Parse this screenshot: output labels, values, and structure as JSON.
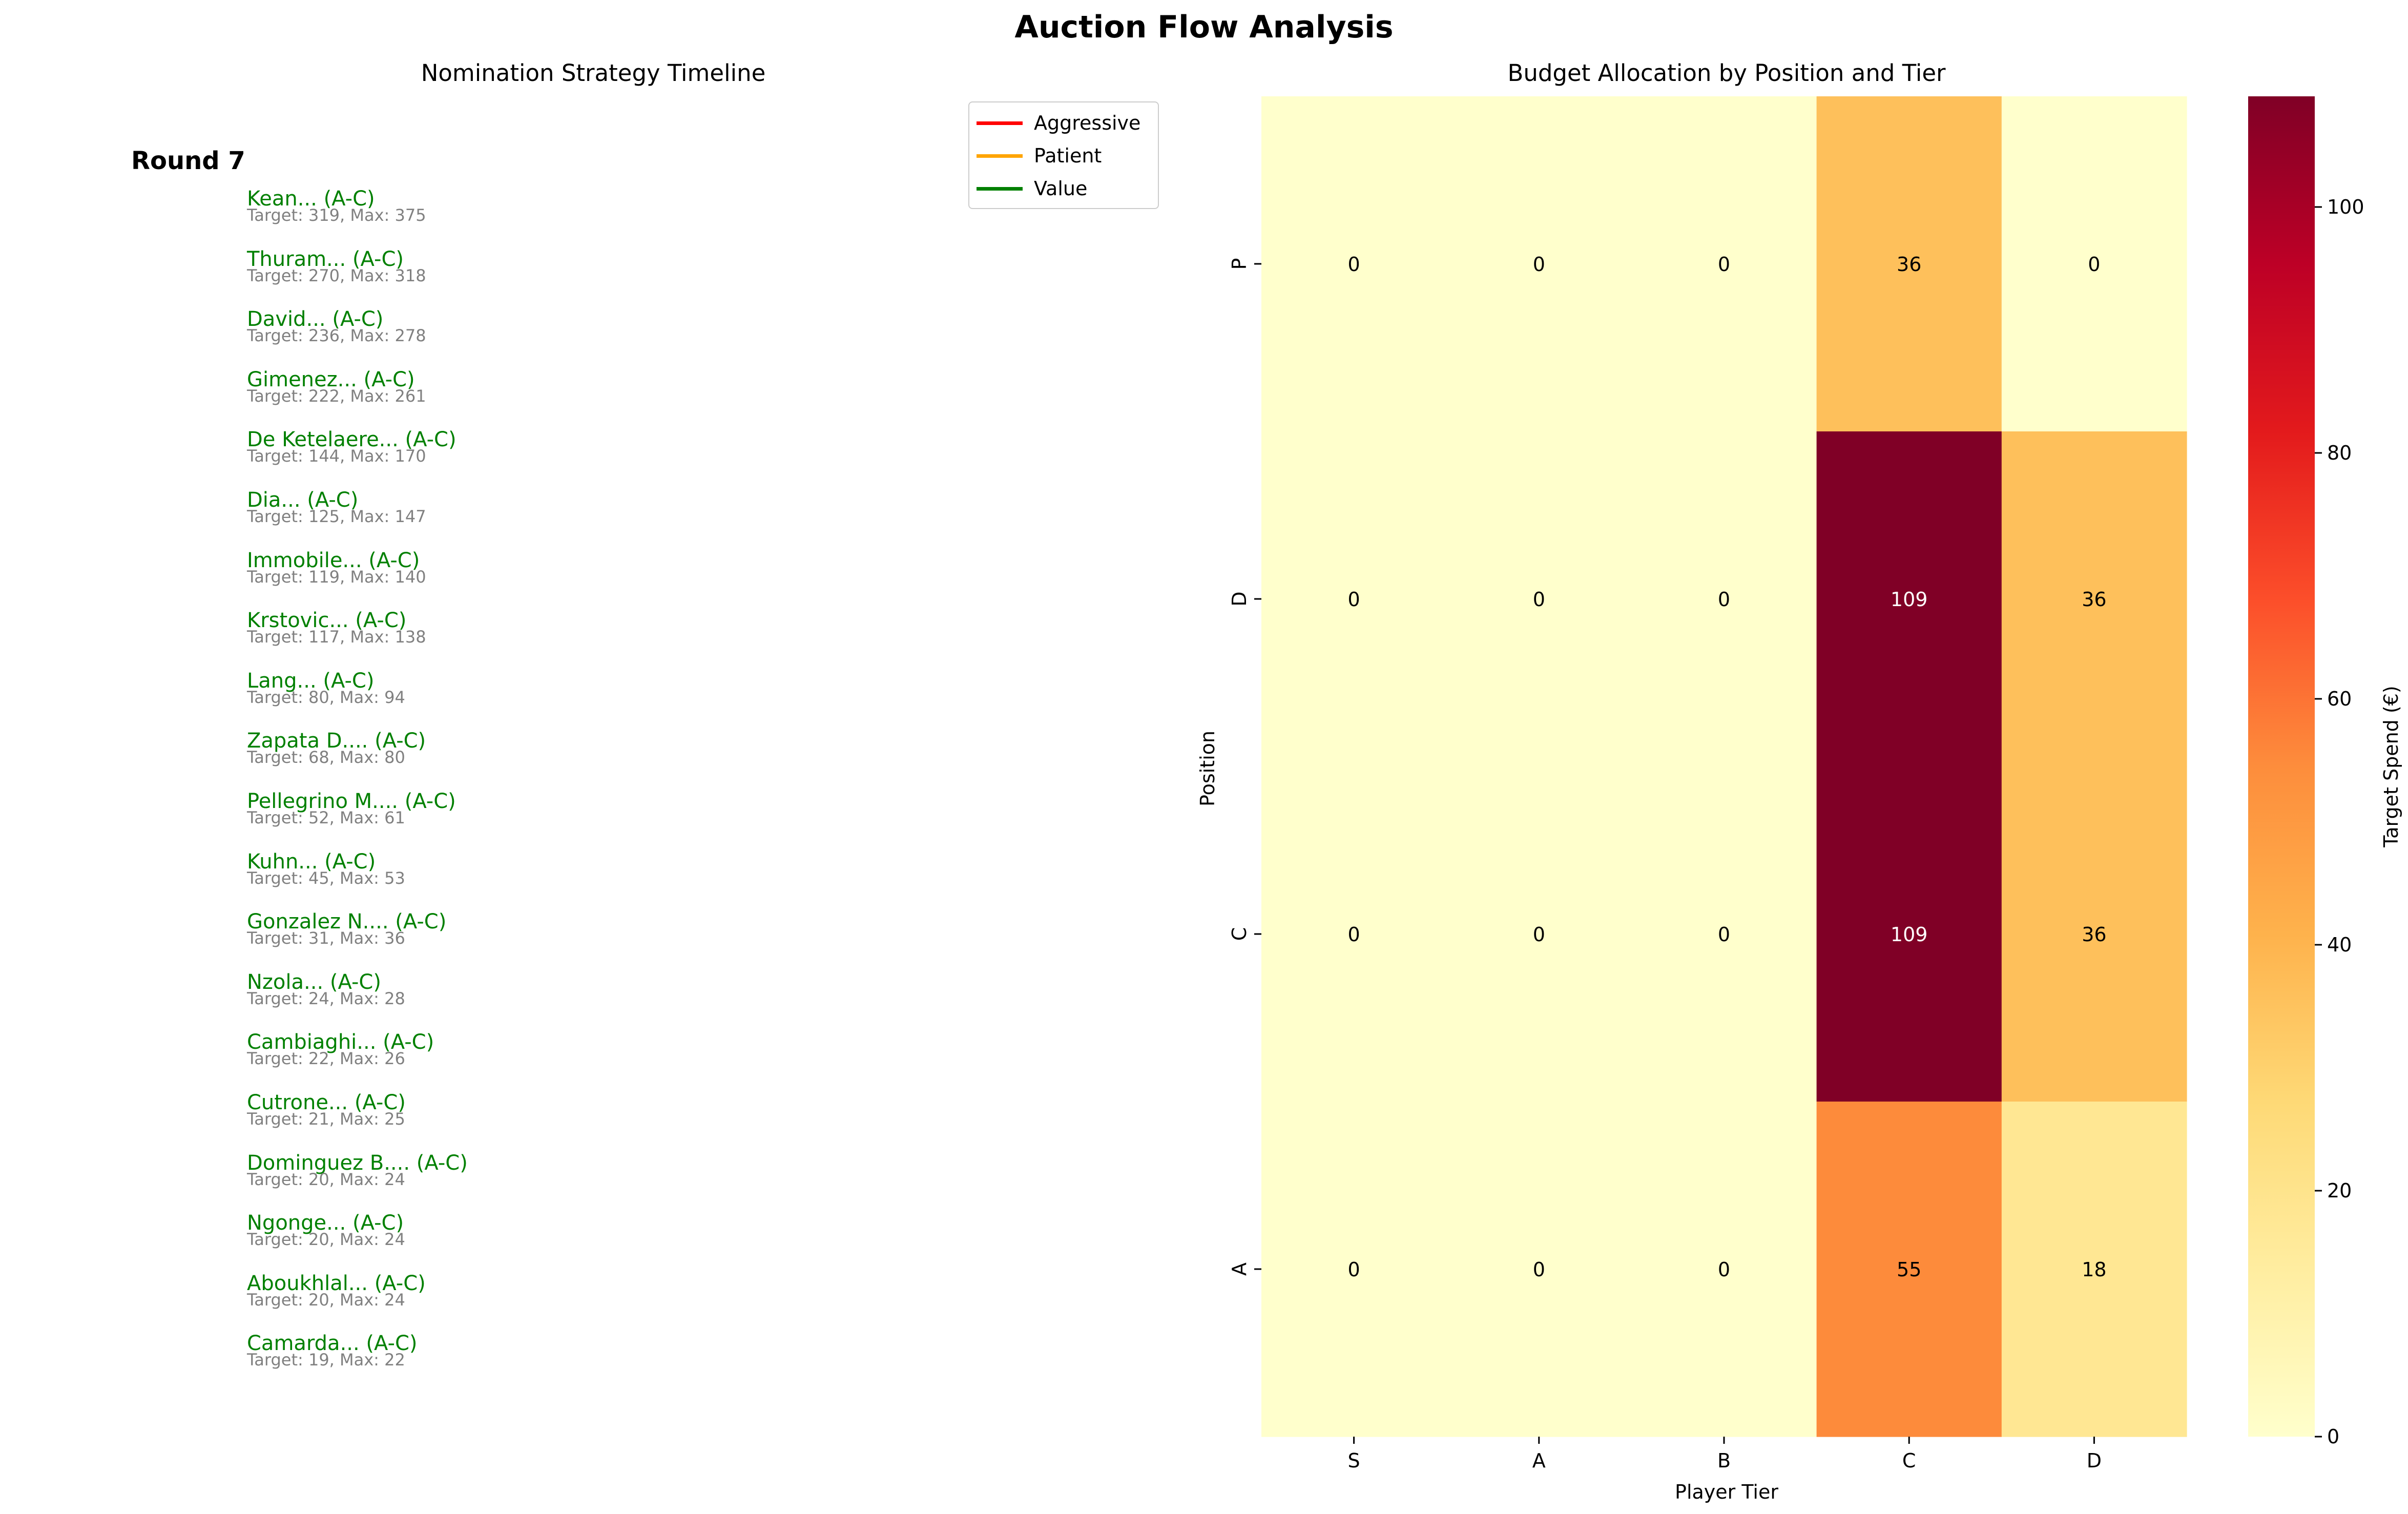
{
  "title": "Auction Flow Analysis",
  "timeline": {
    "title": "Nomination Strategy Timeline",
    "round_label": "Round 7",
    "legend": [
      {
        "label": "Aggressive",
        "color": "#ff0000"
      },
      {
        "label": "Patient",
        "color": "#ffa500"
      },
      {
        "label": "Value",
        "color": "#008000"
      }
    ],
    "players": [
      {
        "name": "Kean... (A-C)",
        "info": "Target: 319, Max: 375"
      },
      {
        "name": "Thuram... (A-C)",
        "info": "Target: 270, Max: 318"
      },
      {
        "name": "David... (A-C)",
        "info": "Target: 236, Max: 278"
      },
      {
        "name": "Gimenez... (A-C)",
        "info": "Target: 222, Max: 261"
      },
      {
        "name": "De Ketelaere... (A-C)",
        "info": "Target: 144, Max: 170"
      },
      {
        "name": "Dia... (A-C)",
        "info": "Target: 125, Max: 147"
      },
      {
        "name": "Immobile... (A-C)",
        "info": "Target: 119, Max: 140"
      },
      {
        "name": "Krstovic... (A-C)",
        "info": "Target: 117, Max: 138"
      },
      {
        "name": "Lang... (A-C)",
        "info": "Target: 80, Max: 94"
      },
      {
        "name": "Zapata D.... (A-C)",
        "info": "Target: 68, Max: 80"
      },
      {
        "name": "Pellegrino M.... (A-C)",
        "info": "Target: 52, Max: 61"
      },
      {
        "name": "Kuhn... (A-C)",
        "info": "Target: 45, Max: 53"
      },
      {
        "name": "Gonzalez N.... (A-C)",
        "info": "Target: 31, Max: 36"
      },
      {
        "name": "Nzola... (A-C)",
        "info": "Target: 24, Max: 28"
      },
      {
        "name": "Cambiaghi... (A-C)",
        "info": "Target: 22, Max: 26"
      },
      {
        "name": "Cutrone... (A-C)",
        "info": "Target: 21, Max: 25"
      },
      {
        "name": "Dominguez B.... (A-C)",
        "info": "Target: 20, Max: 24"
      },
      {
        "name": "Ngonge... (A-C)",
        "info": "Target: 20, Max: 24"
      },
      {
        "name": "Aboukhlal... (A-C)",
        "info": "Target: 20, Max: 24"
      },
      {
        "name": "Camarda... (A-C)",
        "info": "Target: 19, Max: 22"
      }
    ]
  },
  "chart_data": {
    "type": "heatmap",
    "title": "Budget Allocation by Position and Tier",
    "xlabel": "Player Tier",
    "ylabel": "Position",
    "x_categories": [
      "S",
      "A",
      "B",
      "C",
      "D"
    ],
    "y_categories": [
      "P",
      "D",
      "C",
      "A"
    ],
    "values": [
      [
        0,
        0,
        0,
        36,
        0
      ],
      [
        0,
        0,
        0,
        109,
        36
      ],
      [
        0,
        0,
        0,
        109,
        36
      ],
      [
        0,
        0,
        0,
        55,
        18
      ]
    ],
    "colorbar_label": "Target Spend (€)",
    "colorbar_ticks": [
      0,
      20,
      40,
      60,
      80,
      100
    ],
    "vmin": 0,
    "vmax": 109,
    "colormap": "YlOrRd"
  }
}
